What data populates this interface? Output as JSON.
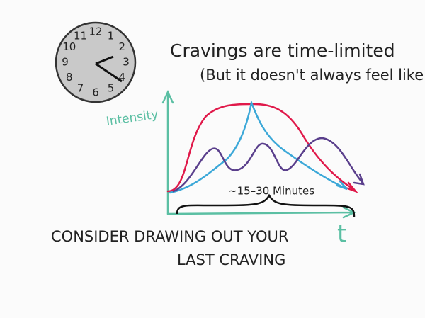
{
  "header": {
    "title": "Cravings are time-limited",
    "subtitle": "(But it doesn't always feel like it!)"
  },
  "clock": {
    "numbers": [
      "12",
      "1",
      "2",
      "3",
      "4",
      "5",
      "6",
      "7",
      "8",
      "9",
      "10",
      "11"
    ]
  },
  "graph": {
    "y_axis_label": "Intensity",
    "x_axis_label": "t",
    "duration_label": "~15–30 Minutes"
  },
  "caption": {
    "line1": "CONSIDER DRAWING OUT YOUR",
    "line2": "LAST CRAVING"
  }
}
